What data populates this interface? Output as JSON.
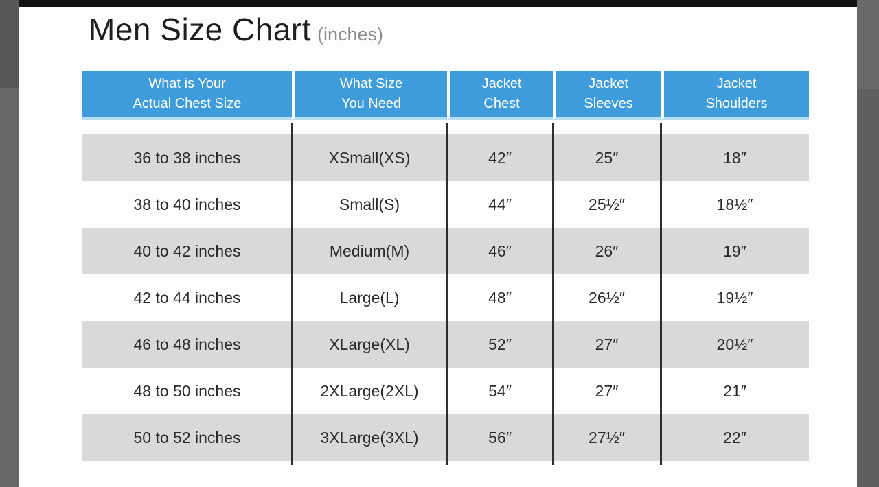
{
  "title": {
    "main": "Men Size Chart",
    "suffix": "(inches)"
  },
  "colors": {
    "header_bg": "#3F9CDB",
    "header_underline": "#B7E0F8",
    "row_gray": "#D9D9D9",
    "row_white": "#FDFDFD",
    "divider": "#2D2D2D",
    "side_strip": "#616161",
    "top_bar": "#111111",
    "title_text": "#1E1E1E",
    "subtitle_text": "#8B8B8B",
    "cell_text": "#2B2B2B"
  },
  "table": {
    "header": [
      {
        "line1": "What is Your",
        "line2": "Actual Chest Size"
      },
      {
        "line1": "What Size",
        "line2": "You Need"
      },
      {
        "line1": "Jacket",
        "line2": "Chest"
      },
      {
        "line1": "Jacket",
        "line2": "Sleeves"
      },
      {
        "line1": "Jacket",
        "line2": "Shoulders"
      }
    ],
    "rows": [
      [
        "36 to 38 inches",
        "XSmall(XS)",
        "42″",
        "25″",
        "18″"
      ],
      [
        "38 to 40 inches",
        "Small(S)",
        "44″",
        "25½″",
        "18½″"
      ],
      [
        "40 to 42 inches",
        "Medium(M)",
        "46″",
        "26″",
        "19″"
      ],
      [
        "42 to 44 inches",
        "Large(L)",
        "48″",
        "26½″",
        "19½″"
      ],
      [
        "46 to 48 inches",
        "XLarge(XL)",
        "52″",
        "27″",
        "20½″"
      ],
      [
        "48 to 50 inches",
        "2XLarge(2XL)",
        "54″",
        "27″",
        "21″"
      ],
      [
        "50 to 52 inches",
        "3XLarge(3XL)",
        "56″",
        "27½″",
        "22″"
      ]
    ]
  },
  "chart_data": {
    "type": "table",
    "title": "Men Size Chart (inches)",
    "columns": [
      "What is Your Actual Chest Size",
      "What Size You Need",
      "Jacket Chest",
      "Jacket Sleeves",
      "Jacket Shoulders"
    ],
    "rows": [
      [
        "36 to 38 inches",
        "XSmall(XS)",
        "42″",
        "25″",
        "18″"
      ],
      [
        "38 to 40 inches",
        "Small(S)",
        "44″",
        "25½″",
        "18½″"
      ],
      [
        "40 to 42 inches",
        "Medium(M)",
        "46″",
        "26″",
        "19″"
      ],
      [
        "42 to 44 inches",
        "Large(L)",
        "48″",
        "26½″",
        "19½″"
      ],
      [
        "46 to 48 inches",
        "XLarge(XL)",
        "52″",
        "27″",
        "20½″"
      ],
      [
        "48 to 50 inches",
        "2XLarge(2XL)",
        "54″",
        "27″",
        "21″"
      ],
      [
        "50 to 52 inches",
        "3XLarge(3XL)",
        "56″",
        "27½″",
        "22″"
      ]
    ]
  }
}
